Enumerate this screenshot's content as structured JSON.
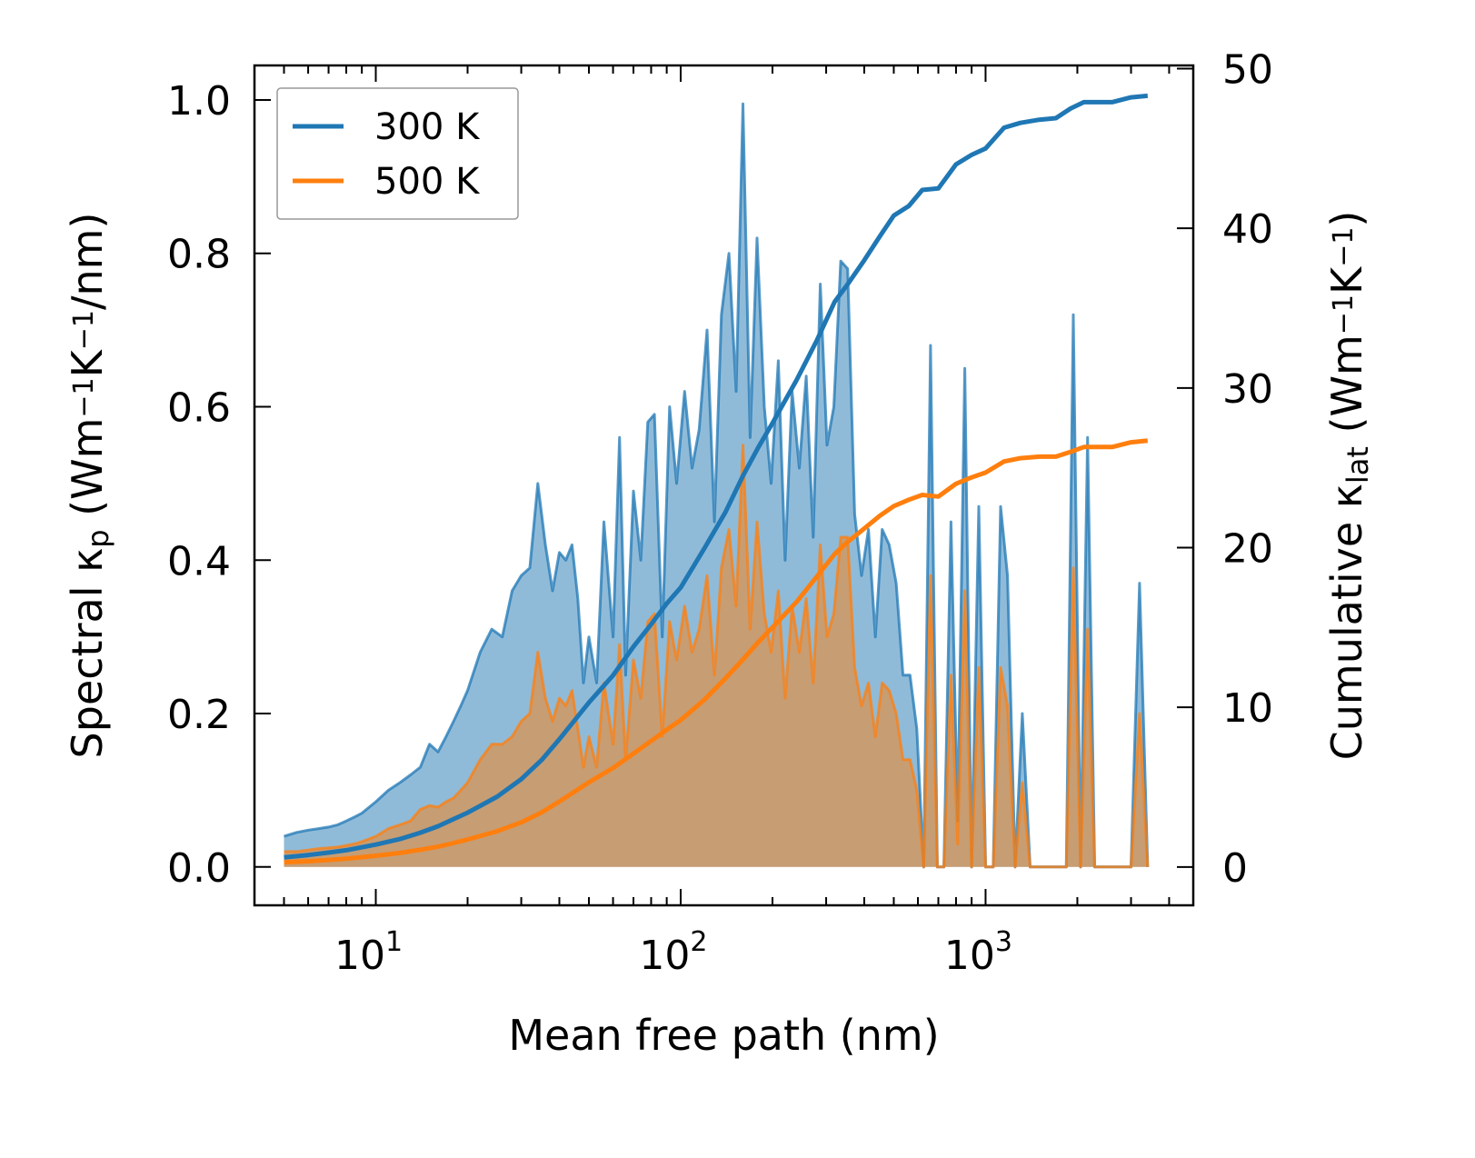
{
  "chart_data": {
    "type": "line",
    "subtype": "spectral-and-cumulative",
    "xlabel": "Mean free path (nm)",
    "xscale": "log",
    "xlim": [
      4,
      4800
    ],
    "xticks": [
      {
        "value": 10,
        "base": "10",
        "exp": "1"
      },
      {
        "value": 100,
        "base": "10",
        "exp": "2"
      },
      {
        "value": 1000,
        "base": "10",
        "exp": "3"
      }
    ],
    "ylabel_left": {
      "prefix": "Spectral κ",
      "sub": "p",
      "units_prefix": " (Wm",
      "sup1": "−1",
      "mid": "K",
      "sup2": "−1",
      "suffix": "/nm)"
    },
    "ylim_left": [
      -0.05,
      1.045
    ],
    "yticks_left": [
      "0.0",
      "0.2",
      "0.4",
      "0.6",
      "0.8",
      "1.0"
    ],
    "ylabel_right": {
      "prefix": "Cumulative κ",
      "sub": "lat",
      "units_prefix": " (Wm",
      "sup1": "−1",
      "mid": "K",
      "sup2": "−1",
      "suffix": ")"
    },
    "ylim_right": [
      -2.4,
      50.2
    ],
    "yticks_right": [
      "0",
      "10",
      "20",
      "30",
      "40",
      "50"
    ],
    "legend": {
      "position": "upper-left",
      "entries": [
        {
          "label": "300 K",
          "color": "#1f77b4"
        },
        {
          "label": "500 K",
          "color": "#ff7f0e"
        }
      ]
    },
    "series": [
      {
        "name": "300 K spectral",
        "axis": "left",
        "style": "filled",
        "color": "#1f77b4",
        "x": [
          5,
          5.5,
          6,
          6.5,
          7,
          7.5,
          8,
          8.5,
          9,
          10,
          11,
          12,
          13,
          14,
          15,
          16,
          17,
          18,
          19,
          20,
          22,
          24,
          26,
          28,
          30,
          32,
          34,
          36,
          38,
          40,
          42,
          44,
          46,
          48,
          50,
          53,
          56,
          60,
          63,
          66,
          70,
          74,
          78,
          82,
          87,
          92,
          97,
          103,
          109,
          115,
          122,
          129,
          136,
          144,
          152,
          160,
          169,
          178,
          188,
          198,
          209,
          220,
          232,
          245,
          258,
          272,
          287,
          302,
          318,
          335,
          353,
          372,
          392,
          413,
          435,
          458,
          483,
          509,
          536,
          565,
          595,
          627,
          660,
          695,
          730,
          770,
          810,
          855,
          900,
          950,
          1000,
          1060,
          1120,
          1180,
          1250,
          1320,
          1400,
          1480,
          1560,
          1650,
          1740,
          1840,
          1940,
          2050,
          2160,
          2280,
          2400,
          2550,
          2700,
          2850,
          3000,
          3200,
          3400
        ],
        "y": [
          0.04,
          0.045,
          0.048,
          0.05,
          0.052,
          0.055,
          0.06,
          0.065,
          0.07,
          0.085,
          0.1,
          0.11,
          0.12,
          0.13,
          0.16,
          0.15,
          0.17,
          0.19,
          0.21,
          0.23,
          0.28,
          0.31,
          0.3,
          0.36,
          0.38,
          0.39,
          0.5,
          0.42,
          0.36,
          0.41,
          0.4,
          0.42,
          0.35,
          0.24,
          0.3,
          0.24,
          0.45,
          0.3,
          0.56,
          0.25,
          0.49,
          0.4,
          0.58,
          0.59,
          0.3,
          0.6,
          0.5,
          0.62,
          0.52,
          0.57,
          0.7,
          0.45,
          0.72,
          0.8,
          0.62,
          0.995,
          0.56,
          0.82,
          0.6,
          0.5,
          0.66,
          0.4,
          0.62,
          0.52,
          0.64,
          0.43,
          0.76,
          0.55,
          0.6,
          0.79,
          0.78,
          0.46,
          0.38,
          0.44,
          0.3,
          0.44,
          0.42,
          0.37,
          0.25,
          0.25,
          0.18,
          0.0,
          0.68,
          0.0,
          0.0,
          0.45,
          0.06,
          0.65,
          0.0,
          0.47,
          0.0,
          0.0,
          0.47,
          0.38,
          0.0,
          0.2,
          0.0,
          0.0,
          0.0,
          0.0,
          0.0,
          0.0,
          0.72,
          0.0,
          0.56,
          0.0,
          0.0,
          0.0,
          0.0,
          0.0,
          0.0,
          0.37,
          0.0
        ]
      },
      {
        "name": "500 K spectral",
        "axis": "left",
        "style": "filled",
        "color": "#ff7f0e",
        "x": [
          5,
          5.5,
          6,
          6.5,
          7,
          7.5,
          8,
          8.5,
          9,
          10,
          11,
          12,
          13,
          14,
          15,
          16,
          17,
          18,
          19,
          20,
          22,
          24,
          26,
          28,
          30,
          32,
          34,
          36,
          38,
          40,
          42,
          44,
          46,
          48,
          50,
          53,
          56,
          60,
          63,
          66,
          70,
          74,
          78,
          82,
          87,
          92,
          97,
          103,
          109,
          115,
          122,
          129,
          136,
          144,
          152,
          160,
          169,
          178,
          188,
          198,
          209,
          220,
          232,
          245,
          258,
          272,
          287,
          302,
          318,
          335,
          353,
          372,
          392,
          413,
          435,
          458,
          483,
          509,
          536,
          565,
          595,
          627,
          660,
          695,
          730,
          770,
          810,
          855,
          900,
          950,
          1000,
          1060,
          1120,
          1180,
          1250,
          1320,
          1400,
          1480,
          1560,
          1650,
          1740,
          1840,
          1940,
          2050,
          2160,
          2280,
          2400,
          2550,
          2700,
          2850,
          3000,
          3200,
          3400
        ],
        "y": [
          0.02,
          0.02,
          0.022,
          0.024,
          0.025,
          0.026,
          0.028,
          0.03,
          0.033,
          0.04,
          0.05,
          0.055,
          0.06,
          0.075,
          0.08,
          0.078,
          0.085,
          0.09,
          0.1,
          0.11,
          0.14,
          0.16,
          0.16,
          0.17,
          0.19,
          0.2,
          0.28,
          0.22,
          0.19,
          0.22,
          0.21,
          0.23,
          0.18,
          0.13,
          0.17,
          0.13,
          0.24,
          0.16,
          0.29,
          0.14,
          0.27,
          0.22,
          0.32,
          0.33,
          0.17,
          0.32,
          0.27,
          0.34,
          0.28,
          0.31,
          0.38,
          0.25,
          0.39,
          0.44,
          0.34,
          0.55,
          0.31,
          0.45,
          0.33,
          0.28,
          0.36,
          0.22,
          0.34,
          0.28,
          0.35,
          0.24,
          0.42,
          0.3,
          0.33,
          0.43,
          0.43,
          0.26,
          0.21,
          0.24,
          0.17,
          0.24,
          0.23,
          0.2,
          0.14,
          0.14,
          0.1,
          0.0,
          0.38,
          0.0,
          0.0,
          0.25,
          0.03,
          0.36,
          0.0,
          0.26,
          0.0,
          0.0,
          0.26,
          0.21,
          0.0,
          0.11,
          0.0,
          0.0,
          0.0,
          0.0,
          0.0,
          0.0,
          0.39,
          0.0,
          0.31,
          0.0,
          0.0,
          0.0,
          0.0,
          0.0,
          0.0,
          0.2,
          0.0
        ]
      },
      {
        "name": "300 K cumulative",
        "axis": "right",
        "style": "line",
        "color": "#1f77b4",
        "x": [
          5,
          6,
          7,
          8,
          10,
          12,
          14,
          16,
          18,
          20,
          25,
          30,
          35,
          40,
          50,
          60,
          70,
          80,
          90,
          100,
          120,
          140,
          160,
          180,
          200,
          240,
          280,
          320,
          350,
          400,
          450,
          500,
          560,
          620,
          700,
          800,
          900,
          1000,
          1150,
          1300,
          1500,
          1700,
          1900,
          2100,
          2300,
          2600,
          3000,
          3400
        ],
        "y": [
          0.6,
          0.75,
          0.9,
          1.05,
          1.4,
          1.75,
          2.15,
          2.55,
          3.0,
          3.4,
          4.4,
          5.5,
          6.7,
          8.0,
          10.3,
          12.0,
          13.8,
          15.2,
          16.5,
          17.5,
          20.0,
          22.2,
          24.5,
          26.3,
          27.8,
          30.5,
          33.0,
          35.4,
          36.4,
          38.0,
          39.5,
          40.8,
          41.4,
          42.4,
          42.5,
          44.0,
          44.6,
          45.0,
          46.3,
          46.6,
          46.8,
          46.9,
          47.5,
          47.9,
          47.9,
          47.9,
          48.2,
          48.3
        ]
      },
      {
        "name": "500 K cumulative",
        "axis": "right",
        "style": "line",
        "color": "#ff7f0e",
        "x": [
          5,
          6,
          7,
          8,
          10,
          12,
          14,
          16,
          18,
          20,
          25,
          30,
          35,
          40,
          50,
          60,
          70,
          80,
          90,
          100,
          120,
          140,
          160,
          180,
          200,
          240,
          280,
          320,
          350,
          400,
          450,
          500,
          560,
          620,
          700,
          800,
          900,
          1000,
          1150,
          1300,
          1500,
          1700,
          1900,
          2100,
          2300,
          2600,
          3000,
          3400
        ],
        "y": [
          0.3,
          0.36,
          0.44,
          0.52,
          0.7,
          0.88,
          1.08,
          1.28,
          1.5,
          1.72,
          2.24,
          2.8,
          3.42,
          4.1,
          5.3,
          6.2,
          7.1,
          7.9,
          8.6,
          9.2,
          10.5,
          11.8,
          13.0,
          14.1,
          15.0,
          16.6,
          18.2,
          19.6,
          20.3,
          21.2,
          22.0,
          22.6,
          23.0,
          23.3,
          23.2,
          24.0,
          24.4,
          24.7,
          25.4,
          25.6,
          25.7,
          25.7,
          26.0,
          26.3,
          26.3,
          26.3,
          26.6,
          26.7
        ]
      }
    ]
  }
}
